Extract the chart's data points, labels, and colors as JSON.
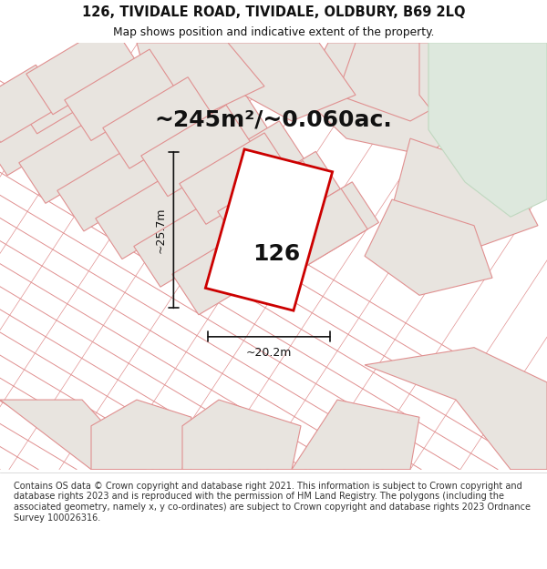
{
  "title_line1": "126, TIVIDALE ROAD, TIVIDALE, OLDBURY, B69 2LQ",
  "title_line2": "Map shows position and indicative extent of the property.",
  "area_text": "~245m²/~0.060ac.",
  "label_126": "126",
  "dim_height": "~25.7m",
  "dim_width": "~20.2m",
  "footer_text": "Contains OS data © Crown copyright and database right 2021. This information is subject to Crown copyright and database rights 2023 and is reproduced with the permission of HM Land Registry. The polygons (including the associated geometry, namely x, y co-ordinates) are subject to Crown copyright and database rights 2023 Ordnance Survey 100026316.",
  "map_bg": "#f2f0ed",
  "parcel_fill": "#e8e4df",
  "parcel_edge": "#e09090",
  "green_fill": "#dde8dd",
  "green_edge": "#c0d8c0",
  "red_color": "#cc0000",
  "dim_color": "#111111",
  "text_color": "#111111",
  "white": "#ffffff"
}
